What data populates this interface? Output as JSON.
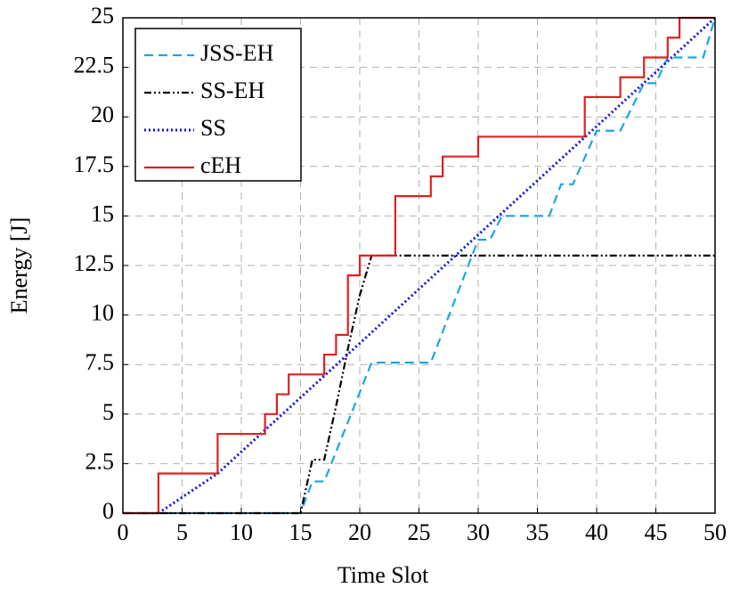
{
  "chart_data": {
    "type": "line",
    "xlabel": "Time Slot",
    "ylabel": "Energy [J]",
    "xlim": [
      0,
      50
    ],
    "ylim": [
      0,
      25
    ],
    "xticks": [
      0,
      5,
      10,
      15,
      20,
      25,
      30,
      35,
      40,
      45,
      50
    ],
    "yticks": [
      0,
      2.5,
      5,
      7.5,
      10,
      12.5,
      15,
      17.5,
      20,
      22.5,
      25
    ],
    "grid": true,
    "legend": "upper left",
    "series": [
      {
        "name": "JSS-EH",
        "color": "#1ba6e0",
        "style": "dashed",
        "x": [
          0,
          15,
          16,
          17,
          21,
          26,
          30,
          31,
          32,
          36,
          37,
          38,
          40,
          42,
          44,
          45,
          46,
          49,
          50
        ],
        "values": [
          0,
          0,
          1.6,
          1.6,
          7.6,
          7.6,
          13.8,
          13.8,
          15,
          15,
          16.6,
          16.6,
          19.3,
          19.3,
          21.7,
          21.7,
          23,
          23,
          25
        ]
      },
      {
        "name": "SS-EH",
        "color": "#000000",
        "style": "dashdotdot",
        "x": [
          0,
          15,
          16,
          17,
          18,
          19,
          20,
          21,
          50
        ],
        "values": [
          0,
          0,
          2.7,
          2.7,
          5.4,
          8.3,
          11,
          13,
          13
        ]
      },
      {
        "name": "SS",
        "color": "#1010e0",
        "style": "dotted",
        "x": [
          3,
          8,
          50
        ],
        "values": [
          0,
          2,
          25
        ]
      },
      {
        "name": "cEH",
        "color": "#e02020",
        "style": "solid",
        "x": [
          0,
          3,
          3,
          8,
          8,
          12,
          12,
          13,
          13,
          14,
          14,
          17,
          17,
          18,
          18,
          19,
          19,
          20,
          20,
          23,
          23,
          26,
          26,
          27,
          27,
          30,
          30,
          39,
          39,
          42,
          42,
          44,
          44,
          46,
          46,
          47,
          47,
          50
        ],
        "values": [
          0,
          0,
          2,
          2,
          4,
          4,
          5,
          5,
          6,
          6,
          7,
          7,
          8,
          8,
          9,
          9,
          12,
          12,
          13,
          13,
          16,
          16,
          17,
          17,
          18,
          18,
          19,
          19,
          21,
          21,
          22,
          22,
          23,
          23,
          24,
          24,
          25,
          25
        ]
      }
    ]
  }
}
